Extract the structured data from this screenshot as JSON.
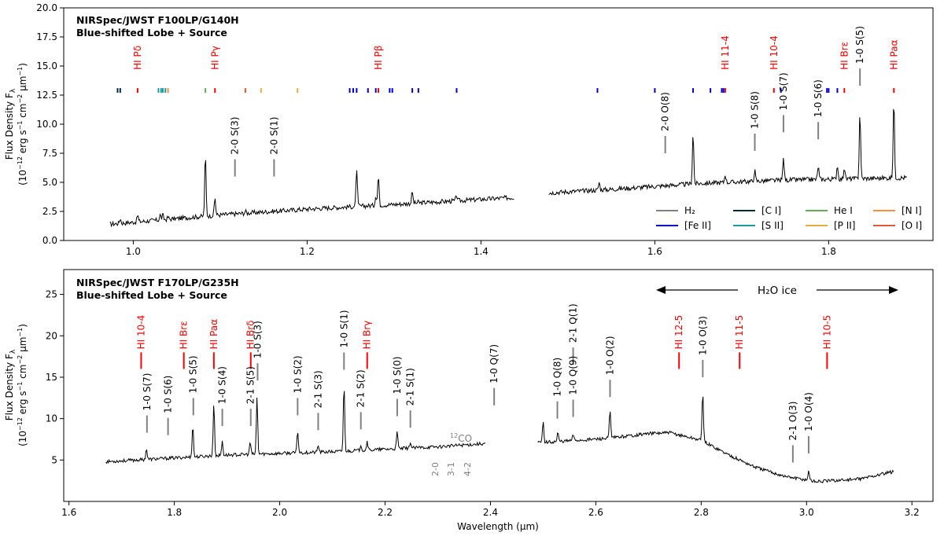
{
  "figure": {
    "ylabel_line1": "Flux Density F",
    "ylabel_sub": "λ",
    "ylabel_line2": "(10",
    "ylabel_exp": "−12",
    "ylabel_units": " erg s",
    "ylabel_u1": "−1",
    "ylabel_cm": " cm",
    "ylabel_u2": "−2",
    "ylabel_um": " μm",
    "ylabel_u3": "−1",
    "ylabel_close": ")",
    "xlabel": "Wavelength (μm)"
  },
  "colors": {
    "H2": "#808080",
    "FeII": "#0000cc",
    "CI": "#002b40",
    "SII": "#1a9c9c",
    "HeI": "#66aa55",
    "PII": "#e0b040",
    "NI": "#ff8c3a",
    "OI": "#e05a3a",
    "HI": "#ff0000",
    "spectrum": "#000000"
  },
  "chart_data": [
    {
      "type": "line",
      "title_line1": "NIRSpec/JWST F100LP/G140H",
      "title_line2": "Blue-shifted Lobe + Source",
      "xlim": [
        0.92,
        1.92
      ],
      "ylim": [
        0,
        20
      ],
      "xticks": [
        "1.0",
        "1.2",
        "1.4",
        "1.6",
        "1.8"
      ],
      "xtick_values": [
        1.0,
        1.2,
        1.4,
        1.6,
        1.8
      ],
      "yticks": [
        "0.0",
        "2.5",
        "5.0",
        "7.5",
        "10.0",
        "12.5",
        "15.0",
        "17.5",
        "20.0"
      ],
      "ytick_values": [
        0,
        2.5,
        5,
        7.5,
        10,
        12.5,
        15,
        17.5,
        20
      ],
      "grid": false,
      "legend_position": "lower-right",
      "legend": [
        {
          "label": "H₂",
          "color": "#808080"
        },
        {
          "label": "[C I]",
          "color": "#002b40"
        },
        {
          "label": "He I",
          "color": "#66aa55"
        },
        {
          "label": "[N I]",
          "color": "#ff8c3a"
        },
        {
          "label": "[Fe II]",
          "color": "#0000cc"
        },
        {
          "label": "[S II]",
          "color": "#1a9c9c"
        },
        {
          "label": "[P II]",
          "color": "#e0b040"
        },
        {
          "label": "[O I]",
          "color": "#e05a3a"
        }
      ],
      "continuum_segments": [
        {
          "x": [
            0.973,
            1.1,
            1.2,
            1.3,
            1.438
          ],
          "y": [
            1.4,
            2.2,
            2.7,
            3.1,
            3.7
          ]
        },
        {
          "x": [
            1.478,
            1.55,
            1.65,
            1.75,
            1.89
          ],
          "y": [
            4.1,
            4.4,
            4.9,
            5.2,
            5.4
          ]
        }
      ],
      "emission_peaks": [
        {
          "x": 0.985,
          "h": 1.9
        },
        {
          "x": 1.005,
          "h": 2.2
        },
        {
          "x": 1.031,
          "h": 2.2
        },
        {
          "x": 1.034,
          "h": 2.2
        },
        {
          "x": 1.04,
          "h": 2.0
        },
        {
          "x": 1.083,
          "h": 7.4
        },
        {
          "x": 1.094,
          "h": 3.7
        },
        {
          "x": 1.129,
          "h": 2.5
        },
        {
          "x": 1.257,
          "h": 6.2
        },
        {
          "x": 1.282,
          "h": 5.6
        },
        {
          "x": 1.279,
          "h": 3.9
        },
        {
          "x": 1.321,
          "h": 4.2
        },
        {
          "x": 1.328,
          "h": 3.3
        },
        {
          "x": 1.372,
          "h": 3.9
        },
        {
          "x": 1.536,
          "h": 5.0
        },
        {
          "x": 1.644,
          "h": 9.3
        },
        {
          "x": 1.681,
          "h": 5.7
        },
        {
          "x": 1.715,
          "h": 6.0
        },
        {
          "x": 1.748,
          "h": 7.1
        },
        {
          "x": 1.788,
          "h": 6.4
        },
        {
          "x": 1.81,
          "h": 6.5
        },
        {
          "x": 1.818,
          "h": 6.3
        },
        {
          "x": 1.836,
          "h": 11.1
        },
        {
          "x": 1.875,
          "h": 12.1
        }
      ],
      "ion_marks": [
        {
          "x": 0.982,
          "ion": "CI"
        },
        {
          "x": 0.985,
          "ion": "CI"
        },
        {
          "x": 1.005,
          "ion": "HI"
        },
        {
          "x": 1.029,
          "ion": "SII"
        },
        {
          "x": 1.032,
          "ion": "SII"
        },
        {
          "x": 1.034,
          "ion": "SII"
        },
        {
          "x": 1.037,
          "ion": "SII"
        },
        {
          "x": 1.04,
          "ion": "NI"
        },
        {
          "x": 1.083,
          "ion": "HeI"
        },
        {
          "x": 1.094,
          "ion": "HI"
        },
        {
          "x": 1.129,
          "ion": "OI"
        },
        {
          "x": 1.147,
          "ion": "PII"
        },
        {
          "x": 1.189,
          "ion": "PII"
        },
        {
          "x": 1.249,
          "ion": "FeII"
        },
        {
          "x": 1.253,
          "ion": "FeII"
        },
        {
          "x": 1.257,
          "ion": "FeII"
        },
        {
          "x": 1.27,
          "ion": "FeII"
        },
        {
          "x": 1.279,
          "ion": "FeII"
        },
        {
          "x": 1.282,
          "ion": "HI"
        },
        {
          "x": 1.295,
          "ion": "FeII"
        },
        {
          "x": 1.298,
          "ion": "FeII"
        },
        {
          "x": 1.321,
          "ion": "FeII"
        },
        {
          "x": 1.328,
          "ion": "FeII"
        },
        {
          "x": 1.372,
          "ion": "FeII"
        },
        {
          "x": 1.534,
          "ion": "FeII"
        },
        {
          "x": 1.6,
          "ion": "FeII"
        },
        {
          "x": 1.644,
          "ion": "FeII"
        },
        {
          "x": 1.664,
          "ion": "FeII"
        },
        {
          "x": 1.677,
          "ion": "FeII"
        },
        {
          "x": 1.679,
          "ion": "FeII"
        },
        {
          "x": 1.681,
          "ion": "HI"
        },
        {
          "x": 1.737,
          "ion": "HI"
        },
        {
          "x": 1.745,
          "ion": "FeII"
        },
        {
          "x": 1.798,
          "ion": "FeII"
        },
        {
          "x": 1.8,
          "ion": "FeII"
        },
        {
          "x": 1.81,
          "ion": "FeII"
        },
        {
          "x": 1.818,
          "ion": "HI"
        },
        {
          "x": 1.875,
          "ion": "HI"
        }
      ],
      "hi_labels": [
        {
          "x": 1.005,
          "text": "HI Pδ"
        },
        {
          "x": 1.094,
          "text": "HI Pγ"
        },
        {
          "x": 1.282,
          "text": "HI Pβ"
        },
        {
          "x": 1.681,
          "text": "HI 11-4"
        },
        {
          "x": 1.737,
          "text": "HI 10-4"
        },
        {
          "x": 1.818,
          "text": "HI Brε"
        },
        {
          "x": 1.875,
          "text": "HI Paα"
        }
      ],
      "h2_labels": [
        {
          "x": 1.117,
          "y": 5.5,
          "text": "2-0 S(3)"
        },
        {
          "x": 1.162,
          "y": 5.5,
          "text": "2-0 S(1)"
        },
        {
          "x": 1.612,
          "y": 7.5,
          "text": "2-0 O(8)"
        },
        {
          "x": 1.715,
          "y": 7.7,
          "text": "1-0 S(8)"
        },
        {
          "x": 1.748,
          "y": 9.3,
          "text": "1-0 S(7)"
        },
        {
          "x": 1.788,
          "y": 8.7,
          "text": "1-0 S(6)"
        },
        {
          "x": 1.836,
          "y": 13.3,
          "text": "1-0 S(5)"
        }
      ]
    },
    {
      "type": "line",
      "title_line1": "NIRSpec/JWST F170LP/G235H",
      "title_line2": "Blue-shifted Lobe + Source",
      "xlim": [
        1.59,
        3.24
      ],
      "ylim": [
        0,
        28
      ],
      "xticks": [
        "1.6",
        "1.8",
        "2.0",
        "2.2",
        "2.4",
        "2.6",
        "2.8",
        "3.0",
        "3.2"
      ],
      "xtick_values": [
        1.6,
        1.8,
        2.0,
        2.2,
        2.4,
        2.6,
        2.8,
        3.0,
        3.2
      ],
      "yticks": [
        "5",
        "10",
        "15",
        "20",
        "25"
      ],
      "ytick_values": [
        5,
        10,
        15,
        20,
        25
      ],
      "grid": false,
      "ice_label": "H₂O ice",
      "co_label": "CO",
      "co_sup": "12",
      "co_bands": [
        "2-0",
        "3-1",
        "4-2"
      ],
      "continuum_segments": [
        {
          "x": [
            1.67,
            1.9,
            2.1,
            2.3,
            2.39
          ],
          "y": [
            4.8,
            5.6,
            6.0,
            6.6,
            7.0
          ]
        },
        {
          "x": [
            2.49,
            2.62,
            2.7,
            2.74,
            2.8,
            2.85,
            2.9,
            2.96,
            3.02,
            3.1,
            3.165
          ],
          "y": [
            7.1,
            7.6,
            8.2,
            8.3,
            7.4,
            5.7,
            4.2,
            3.0,
            2.4,
            2.7,
            3.6
          ]
        }
      ],
      "emission_peaks": [
        {
          "x": 1.747,
          "h": 6.4
        },
        {
          "x": 1.835,
          "h": 9.2
        },
        {
          "x": 1.875,
          "h": 11.9
        },
        {
          "x": 1.891,
          "h": 7.3
        },
        {
          "x": 1.944,
          "h": 7.2
        },
        {
          "x": 1.957,
          "h": 12.6
        },
        {
          "x": 2.034,
          "h": 8.6
        },
        {
          "x": 2.073,
          "h": 6.8
        },
        {
          "x": 2.122,
          "h": 14.1
        },
        {
          "x": 2.154,
          "h": 6.9
        },
        {
          "x": 2.166,
          "h": 7.3
        },
        {
          "x": 2.223,
          "h": 8.4
        },
        {
          "x": 2.248,
          "h": 7.2
        },
        {
          "x": 2.5,
          "h": 9.6
        },
        {
          "x": 2.528,
          "h": 8.3
        },
        {
          "x": 2.557,
          "h": 8.1
        },
        {
          "x": 2.627,
          "h": 11.0
        },
        {
          "x": 2.803,
          "h": 13.4
        },
        {
          "x": 2.974,
          "h": 2.9
        },
        {
          "x": 3.004,
          "h": 3.8
        }
      ],
      "hi_labels": [
        {
          "x": 1.737,
          "text": "HI 10-4"
        },
        {
          "x": 1.818,
          "text": "HI Brε"
        },
        {
          "x": 1.875,
          "text": "HI Paα"
        },
        {
          "x": 1.945,
          "text": "HI Brδ"
        },
        {
          "x": 2.166,
          "text": "HI Brγ"
        },
        {
          "x": 2.758,
          "text": "HI 12-5"
        },
        {
          "x": 2.873,
          "text": "HI 11-5"
        },
        {
          "x": 3.039,
          "text": "HI 10-5"
        }
      ],
      "h2_labels": [
        {
          "x": 1.748,
          "y": 8.3,
          "text": "1-0 S(7)"
        },
        {
          "x": 1.788,
          "y": 8.0,
          "text": "1-0 S(6)"
        },
        {
          "x": 1.836,
          "y": 10.4,
          "text": "1-0 S(5)"
        },
        {
          "x": 1.891,
          "y": 9.1,
          "text": "1-0 S(4)"
        },
        {
          "x": 1.945,
          "y": 9.1,
          "text": "2-1 S(5)"
        },
        {
          "x": 1.958,
          "y": 14.6,
          "text": "1-0 S(3)"
        },
        {
          "x": 2.034,
          "y": 10.4,
          "text": "1-0 S(2)"
        },
        {
          "x": 2.073,
          "y": 8.6,
          "text": "2-1 S(3)"
        },
        {
          "x": 2.122,
          "y": 15.9,
          "text": "1-0 S(1)"
        },
        {
          "x": 2.154,
          "y": 8.7,
          "text": "2-1 S(2)"
        },
        {
          "x": 2.223,
          "y": 10.3,
          "text": "1-0 S(0)"
        },
        {
          "x": 2.248,
          "y": 8.9,
          "text": "2-1 S(1)"
        },
        {
          "x": 2.407,
          "y": 11.6,
          "text": "1-0 Q(7)"
        },
        {
          "x": 2.527,
          "y": 10.0,
          "text": "1-0 Q(8)"
        },
        {
          "x": 2.557,
          "y": 16.5,
          "text": "2-1 Q(1)"
        },
        {
          "x": 2.557,
          "y": 10.2,
          "text": "1-0 Q(9)"
        },
        {
          "x": 2.627,
          "y": 12.6,
          "text": "1-0 O(2)"
        },
        {
          "x": 2.803,
          "y": 15.0,
          "text": "1-0 O(3)"
        },
        {
          "x": 2.974,
          "y": 4.7,
          "text": "2-1 O(3)"
        },
        {
          "x": 3.004,
          "y": 5.8,
          "text": "1-0 O(4)"
        }
      ]
    }
  ]
}
